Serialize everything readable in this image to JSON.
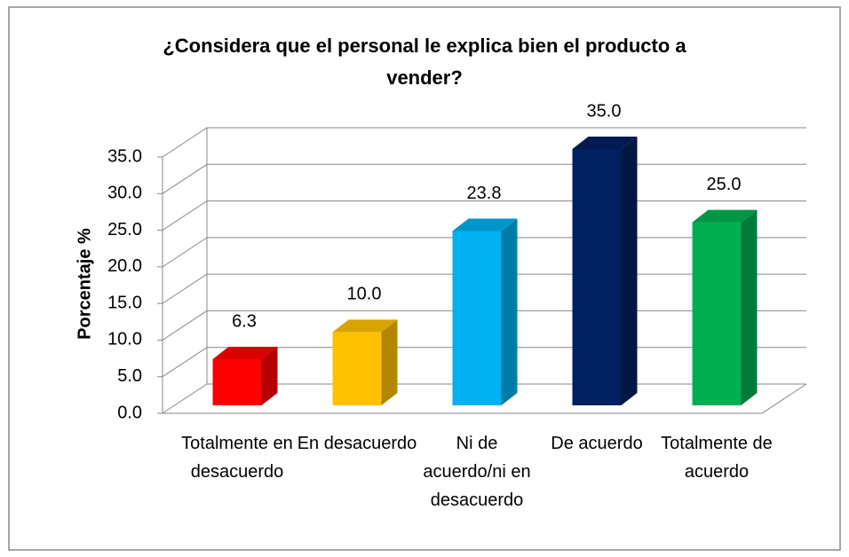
{
  "chart_data": {
    "type": "bar3d",
    "title": "¿Considera que el personal le explica bien el producto a vender?",
    "ylabel": "Porcentaje %",
    "categories": [
      "Totalmente en desacuerdo",
      "En desacuerdo",
      "Ni de acuerdo/ni en desacuerdo",
      "De acuerdo",
      "Totalmente de acuerdo"
    ],
    "values": [
      6.3,
      10,
      23.8,
      35,
      25
    ],
    "value_labels": [
      "6.3",
      "10.0",
      "23.8",
      "35.0",
      "25.0"
    ],
    "colors": [
      "#ff0000",
      "#ffc000",
      "#00b0f0",
      "#002060",
      "#00b050"
    ],
    "ylim": [
      0,
      35
    ],
    "yticks": [
      {
        "value": 0,
        "label": "0.0"
      },
      {
        "value": 5,
        "label": "5.0"
      },
      {
        "value": 10,
        "label": "10.0"
      },
      {
        "value": 15,
        "label": "15.0"
      },
      {
        "value": 20,
        "label": "20.0"
      },
      {
        "value": 25,
        "label": "25.0"
      },
      {
        "value": 30,
        "label": "30.0"
      },
      {
        "value": 35,
        "label": "35.0"
      }
    ],
    "grid": true
  }
}
